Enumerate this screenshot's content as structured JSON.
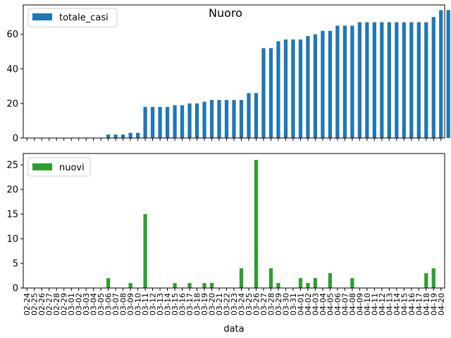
{
  "title": "Nuoro",
  "chart_data": [
    {
      "type": "bar",
      "title": "Nuoro",
      "xlabel": "",
      "ylabel": "",
      "ylim": [
        0,
        77
      ],
      "yticks": [
        0,
        20,
        40,
        60
      ],
      "legend": "top-left",
      "grid": false,
      "series": [
        {
          "name": "totale_casi",
          "color": "#1f77b4",
          "values": [
            0,
            0,
            0,
            0,
            0,
            0,
            0,
            0,
            0,
            0,
            0,
            2,
            2,
            2,
            3,
            3,
            18,
            18,
            18,
            18,
            19,
            19,
            20,
            20,
            21,
            22,
            22,
            22,
            22,
            22,
            26,
            26,
            52,
            52,
            56,
            57,
            57,
            57,
            59,
            60,
            62,
            62,
            65,
            65,
            65,
            67,
            67,
            67,
            67,
            67,
            67,
            67,
            67,
            67,
            67,
            70,
            74,
            74
          ]
        }
      ]
    },
    {
      "type": "bar",
      "xlabel": "data",
      "ylabel": "",
      "ylim": [
        0,
        27.3
      ],
      "yticks": [
        0,
        5,
        10,
        15,
        20,
        25
      ],
      "legend": "top-left",
      "grid": false,
      "categories": [
        "02-24",
        "02-25",
        "02-26",
        "02-27",
        "02-28",
        "02-29",
        "03-01",
        "03-02",
        "03-03",
        "03-04",
        "03-05",
        "03-06",
        "03-07",
        "03-08",
        "03-09",
        "03-10",
        "03-11",
        "03-12",
        "03-13",
        "03-14",
        "03-15",
        "03-16",
        "03-17",
        "03-18",
        "03-19",
        "03-20",
        "03-21",
        "03-22",
        "03-23",
        "03-24",
        "03-25",
        "03-26",
        "03-27",
        "03-28",
        "03-29",
        "03-30",
        "03-31",
        "04-01",
        "04-02",
        "04-03",
        "04-04",
        "04-05",
        "04-06",
        "04-07",
        "04-08",
        "04-09",
        "04-10",
        "04-11",
        "04-12",
        "04-13",
        "04-14",
        "04-15",
        "04-16",
        "04-17",
        "04-18",
        "04-19",
        "04-20"
      ],
      "series": [
        {
          "name": "nuovi",
          "color": "#2ca02c",
          "values": [
            0,
            0,
            0,
            0,
            0,
            0,
            0,
            0,
            0,
            0,
            0,
            2,
            0,
            0,
            1,
            0,
            15,
            0,
            0,
            0,
            1,
            0,
            1,
            0,
            1,
            1,
            0,
            0,
            0,
            4,
            0,
            26,
            0,
            4,
            1,
            0,
            0,
            2,
            1,
            2,
            0,
            3,
            0,
            0,
            2,
            0,
            0,
            0,
            0,
            0,
            0,
            0,
            0,
            0,
            3,
            4,
            0
          ]
        }
      ]
    }
  ]
}
